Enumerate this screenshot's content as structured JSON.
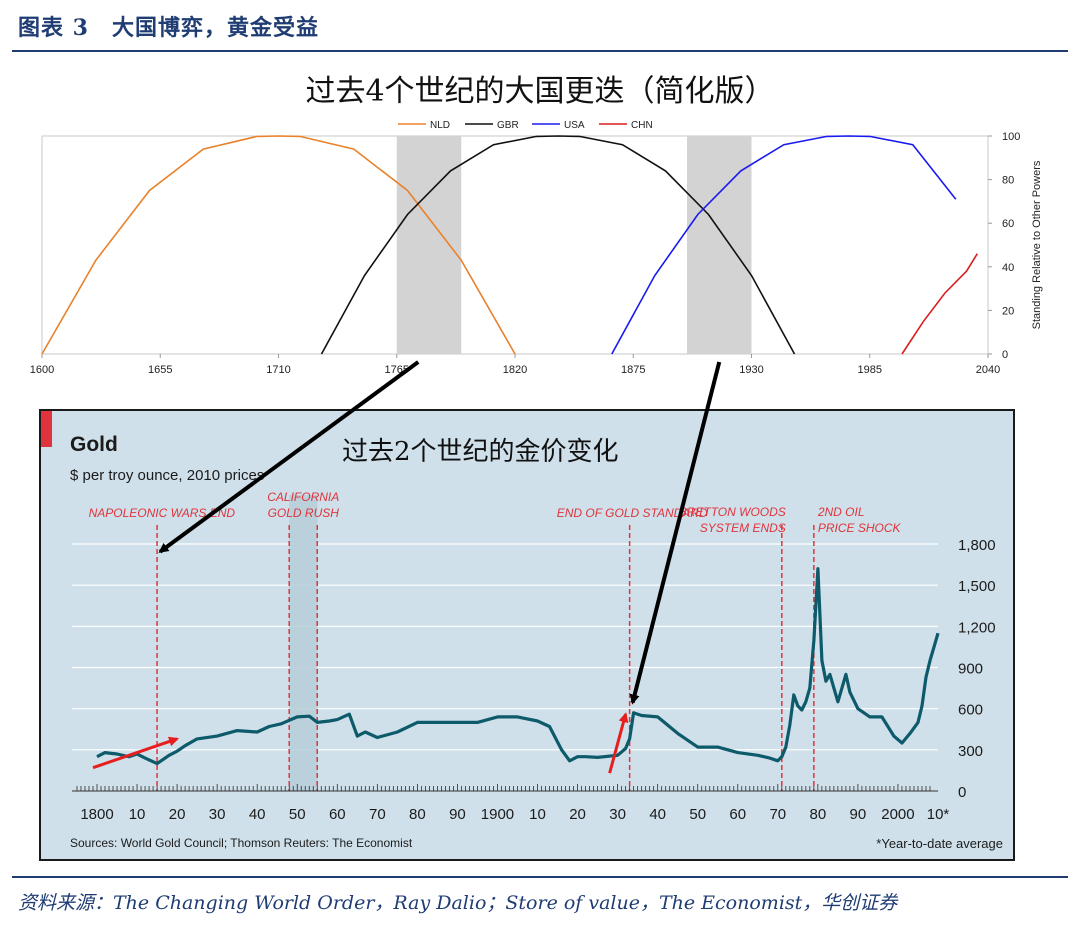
{
  "figure": {
    "label": "图表 3　大国博弈，黄金受益",
    "source": "资料来源：The Changing World Order，Ray Dalio；Store of value，The Economist，华创证券"
  },
  "colors": {
    "brand": "#1f3c73",
    "nld": "#e8822b",
    "gbr": "#111111",
    "usa": "#1a1aee",
    "chn": "#d81e1e",
    "transition_band": "#d3d3d3",
    "gold_bg": "#cfe0ea",
    "gold_line": "#0d5a6b",
    "gold_marker": "#e0343c",
    "gold_rush_band": "#b6ccd8",
    "arrow": "#000000",
    "arrow_red": "#e61e1e"
  },
  "annotation_arrows": [
    {
      "from_chart1_x": 1775,
      "to_chart2_x": 1815,
      "to_chart2_y": 280
    },
    {
      "from_chart1_x": 1915,
      "to_chart2_x": 1933,
      "to_chart2_y": 560
    }
  ],
  "chart_data": [
    {
      "type": "line",
      "title": "过去4个世纪的大国更迭（简化版）",
      "ylabel": "Standing Relative to Other Powers",
      "xlim": [
        1600,
        2040
      ],
      "ylim": [
        0,
        100
      ],
      "x_ticks": [
        1600,
        1655,
        1710,
        1765,
        1820,
        1875,
        1930,
        1985,
        2040
      ],
      "y_ticks": [
        0,
        20,
        40,
        60,
        80,
        100
      ],
      "y_axis_side": "right",
      "legend_position": "top",
      "shaded_periods": [
        [
          1765,
          1795
        ],
        [
          1900,
          1930
        ]
      ],
      "series": [
        {
          "name": "NLD",
          "color": "#e8822b",
          "x": [
            1600,
            1625,
            1650,
            1675,
            1700,
            1710,
            1720,
            1745,
            1770,
            1795,
            1820
          ],
          "y": [
            0,
            43,
            75,
            94,
            99.8,
            100,
            99.8,
            94,
            75,
            43,
            0
          ]
        },
        {
          "name": "GBR",
          "color": "#111111",
          "x": [
            1730,
            1750,
            1770,
            1790,
            1810,
            1830,
            1840,
            1850,
            1870,
            1890,
            1910,
            1930,
            1950
          ],
          "y": [
            0,
            36,
            64,
            84,
            96,
            99.8,
            100,
            99.8,
            96,
            84,
            64,
            36,
            0
          ]
        },
        {
          "name": "USA",
          "color": "#1a1aee",
          "x": [
            1865,
            1885,
            1905,
            1925,
            1945,
            1965,
            1975,
            1985,
            2005,
            2025
          ],
          "y": [
            0,
            36,
            64,
            84,
            96,
            99.8,
            100,
            99.8,
            96,
            71
          ]
        },
        {
          "name": "CHN",
          "color": "#d81e1e",
          "x": [
            2000,
            2010,
            2020,
            2030,
            2035
          ],
          "y": [
            0,
            15,
            28,
            38,
            46
          ]
        }
      ]
    },
    {
      "type": "line",
      "overlay_title": "过去2个世纪的金价变化",
      "title": "Gold",
      "subtitle": "$ per troy ounce, 2010 prices",
      "xlim": [
        1795,
        2010
      ],
      "ylim": [
        0,
        1800
      ],
      "x_tick_labels": [
        {
          "x": 1800,
          "label": "1800"
        },
        {
          "x": 1810,
          "label": "10"
        },
        {
          "x": 1820,
          "label": "20"
        },
        {
          "x": 1830,
          "label": "30"
        },
        {
          "x": 1840,
          "label": "40"
        },
        {
          "x": 1850,
          "label": "50"
        },
        {
          "x": 1860,
          "label": "60"
        },
        {
          "x": 1870,
          "label": "70"
        },
        {
          "x": 1880,
          "label": "80"
        },
        {
          "x": 1890,
          "label": "90"
        },
        {
          "x": 1900,
          "label": "1900"
        },
        {
          "x": 1910,
          "label": "10"
        },
        {
          "x": 1920,
          "label": "20"
        },
        {
          "x": 1930,
          "label": "30"
        },
        {
          "x": 1940,
          "label": "40"
        },
        {
          "x": 1950,
          "label": "50"
        },
        {
          "x": 1960,
          "label": "60"
        },
        {
          "x": 1970,
          "label": "70"
        },
        {
          "x": 1980,
          "label": "80"
        },
        {
          "x": 1990,
          "label": "90"
        },
        {
          "x": 2000,
          "label": "2000"
        },
        {
          "x": 2010,
          "label": "10*"
        }
      ],
      "y_ticks": [
        {
          "v": 0,
          "label": "0"
        },
        {
          "v": 300,
          "label": "300"
        },
        {
          "v": 600,
          "label": "600"
        },
        {
          "v": 900,
          "label": "900"
        },
        {
          "v": 1200,
          "label": "1,200"
        },
        {
          "v": 1500,
          "label": "1,500"
        },
        {
          "v": 1800,
          "label": "1,800"
        }
      ],
      "y_axis_side": "right",
      "grid": true,
      "events": [
        {
          "x": 1815,
          "label_lines": [
            "NAPOLEONIC WARS END"
          ]
        },
        {
          "x": 1933,
          "label_lines": [
            "END OF GOLD STANDARD"
          ]
        },
        {
          "x": 1971,
          "label_lines": [
            "BRETTON WOODS",
            "SYSTEM ENDS"
          ]
        },
        {
          "x": 1979,
          "label_lines": [
            "2ND OIL",
            "PRICE SHOCK"
          ]
        }
      ],
      "bands": [
        {
          "x0": 1848,
          "x1": 1855,
          "label_lines": [
            "CALIFORNIA",
            "GOLD RUSH"
          ]
        }
      ],
      "series": [
        {
          "name": "",
          "x": [
            1800,
            1802,
            1805,
            1808,
            1810,
            1812,
            1815,
            1818,
            1820,
            1822,
            1825,
            1830,
            1835,
            1840,
            1843,
            1846,
            1850,
            1853,
            1855,
            1858,
            1860,
            1863,
            1865,
            1867,
            1870,
            1875,
            1880,
            1885,
            1890,
            1895,
            1900,
            1905,
            1910,
            1913,
            1916,
            1918,
            1920,
            1922,
            1925,
            1930,
            1932,
            1933,
            1934,
            1936,
            1940,
            1945,
            1950,
            1955,
            1960,
            1965,
            1968,
            1970,
            1971,
            1972,
            1973,
            1974,
            1975,
            1976,
            1977,
            1978,
            1979,
            1980,
            1981,
            1982,
            1983,
            1985,
            1987,
            1988,
            1990,
            1993,
            1996,
            1999,
            2001,
            2003,
            2005,
            2006,
            2007,
            2008,
            2009,
            2010
          ],
          "y": [
            250,
            280,
            270,
            250,
            270,
            240,
            200,
            260,
            290,
            330,
            380,
            400,
            440,
            430,
            470,
            490,
            540,
            545,
            500,
            510,
            520,
            560,
            400,
            430,
            390,
            430,
            500,
            500,
            500,
            500,
            540,
            540,
            510,
            470,
            300,
            220,
            250,
            250,
            245,
            260,
            310,
            380,
            570,
            550,
            540,
            420,
            320,
            320,
            280,
            260,
            240,
            220,
            250,
            320,
            480,
            700,
            620,
            590,
            650,
            750,
            1100,
            1620,
            950,
            800,
            850,
            650,
            850,
            720,
            600,
            540,
            540,
            400,
            350,
            420,
            500,
            620,
            830,
            950,
            1050,
            1150
          ]
        }
      ],
      "sources": "Sources: World Gold Council; Thomson Reuters: The Economist",
      "footnote": "*Year-to-date average"
    }
  ]
}
